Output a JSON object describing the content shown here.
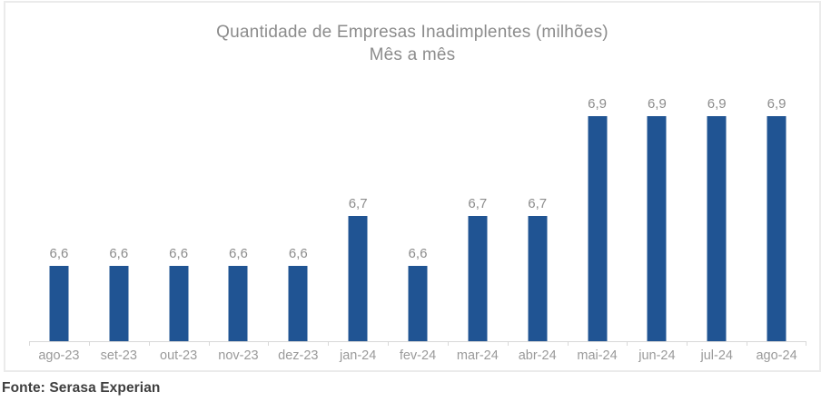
{
  "source_note": "Fonte: Serasa Experian",
  "colors": {
    "bar": "#205493",
    "title_text": "#8C8C8C",
    "data_label_text": "#8C8C8C",
    "axis_label_text": "#9A9A9A",
    "axis_line": "#D9D9D9",
    "chart_border": "#EBEBEB",
    "source_text": "#3F3F3F",
    "background": "#FFFFFF"
  },
  "chart_data": {
    "type": "bar",
    "title": "Quantidade de Empresas Inadimplentes (milhões)",
    "subtitle": "Mês a mês",
    "categories": [
      "ago-23",
      "set-23",
      "out-23",
      "nov-23",
      "dez-23",
      "jan-24",
      "fev-24",
      "mar-24",
      "abr-24",
      "mai-24",
      "jun-24",
      "jul-24",
      "ago-24"
    ],
    "values": [
      6.6,
      6.6,
      6.6,
      6.6,
      6.6,
      6.7,
      6.6,
      6.7,
      6.7,
      6.9,
      6.9,
      6.9,
      6.9
    ],
    "data_labels": [
      "6,6",
      "6,6",
      "6,6",
      "6,6",
      "6,6",
      "6,7",
      "6,6",
      "6,7",
      "6,7",
      "6,9",
      "6,9",
      "6,9",
      "6,9"
    ],
    "xlabel": "",
    "ylabel": "",
    "ylim": [
      6.45,
      7.0
    ],
    "grid": false,
    "legend": false,
    "y_axis_visible": false,
    "data_labels_visible": true
  }
}
